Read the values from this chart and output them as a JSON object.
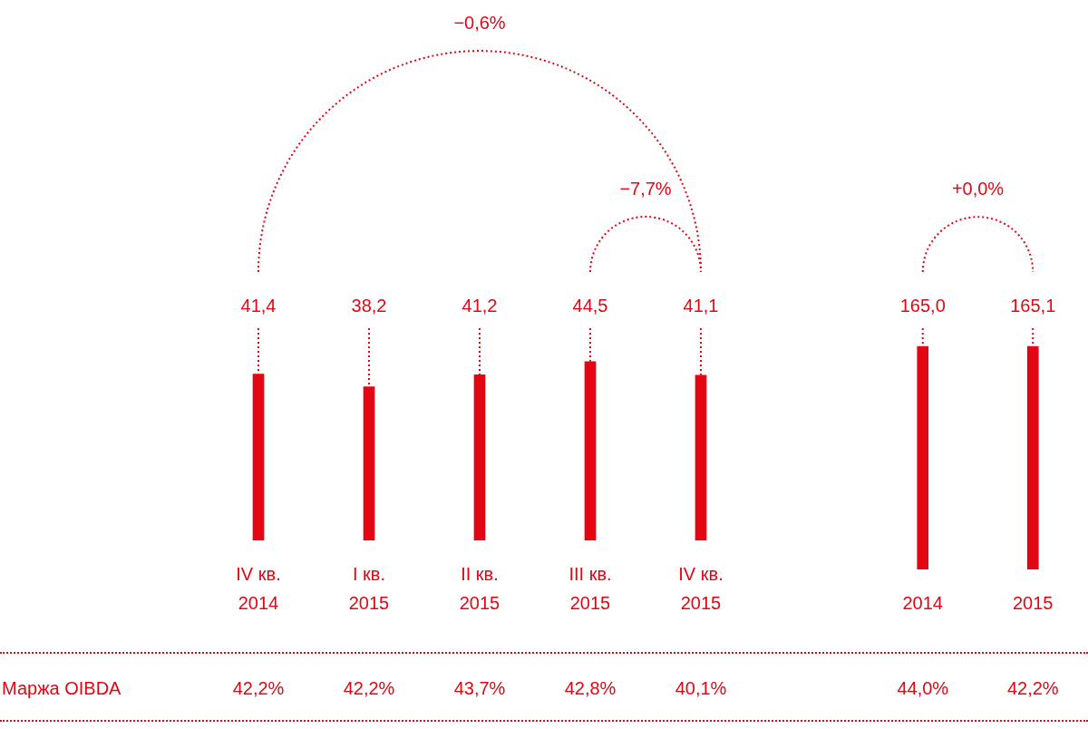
{
  "chart_data": [
    {
      "type": "bar",
      "categories": [
        "IV кв. 2014",
        "I кв. 2015",
        "II кв. 2015",
        "III кв. 2015",
        "IV кв. 2015"
      ],
      "values": [
        41.4,
        38.2,
        41.2,
        44.5,
        41.1
      ],
      "color": "#e30613",
      "value_labels": [
        "41,4",
        "38,2",
        "41,2",
        "44,5",
        "41,1"
      ],
      "annotations": [
        "−0,6%",
        "−7,7%",
        "Маржа OIBDA",
        "42,2%",
        "42,2%",
        "43,7%",
        "42,8%",
        "40,1%"
      ]
    },
    {
      "type": "bar",
      "categories": [
        "2014",
        "2015"
      ],
      "values": [
        165.0,
        165.1
      ],
      "color": "#e30613",
      "value_labels": [
        "165,0",
        "165,1"
      ],
      "annotations": [
        "+0,0%",
        "44,0%",
        "42,2%"
      ]
    }
  ]
}
